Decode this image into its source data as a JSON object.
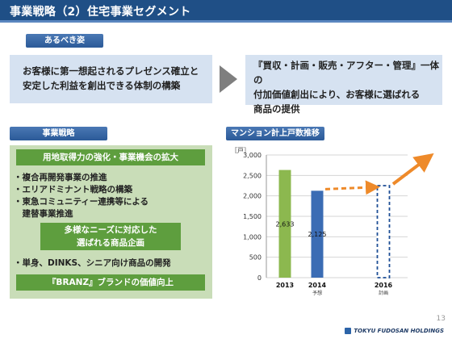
{
  "title": "事業戦略（2）住宅事業セグメント",
  "vision": {
    "tab_label": "あるべき姿",
    "left_text": [
      "お客様に第一想起されるプレゼンス確立と",
      "安定した利益を創出できる体制の構築"
    ],
    "right_text": [
      "『買収・計画・販売・アフター・管理』一体の",
      "付加価値創出により、お客様に選ばれる",
      "商品の提供"
    ]
  },
  "strategy": {
    "tab_label": "事業戦略",
    "bar1": "用地取得力の強化・事業機会の拡大",
    "items1": [
      "・複合再開発事業の推進",
      "・エリアドミナント戦略の構築",
      "・東急コミュニティー連携等による",
      "　建替事業推進"
    ],
    "bar2": [
      "多様なニーズに対応した",
      "選ばれる商品企画"
    ],
    "item2": "・単身、DINKS、シニア向け商品の開発",
    "bar3": "『BRANZ』ブランドの価値向上"
  },
  "chart_tab_label": "マンション計上戸数推移",
  "chart_data": {
    "type": "bar",
    "unit_label": "［戸］",
    "categories": [
      "2013",
      "2014",
      "2016"
    ],
    "sublabels": [
      "",
      "予想",
      "計画"
    ],
    "values": [
      2633,
      2125,
      2250
    ],
    "value_labels": [
      "2,633",
      "2,125",
      ""
    ],
    "colors": [
      "#8cb84f",
      "#3b6cb4",
      "#ffffff"
    ],
    "ylim": [
      0,
      3000
    ],
    "yticks": [
      0,
      500,
      1000,
      1500,
      2000,
      2500,
      3000
    ],
    "ytick_labels": [
      "0",
      "500",
      "1,000",
      "1,500",
      "2,000",
      "2,500",
      "3,000"
    ],
    "grid": true,
    "last_bar_style": "dashed-outline",
    "arrow_color": "#ee8a2a"
  },
  "page_number": "13",
  "logo_text": "TOKYU FUDOSAN HOLDINGS",
  "colors": {
    "title_bar": "#1f4f86",
    "accent_blue": "#2b5a98",
    "light_blue": "#d6e2f1",
    "green": "#5e9e3e",
    "light_green": "#c9ddb8"
  }
}
